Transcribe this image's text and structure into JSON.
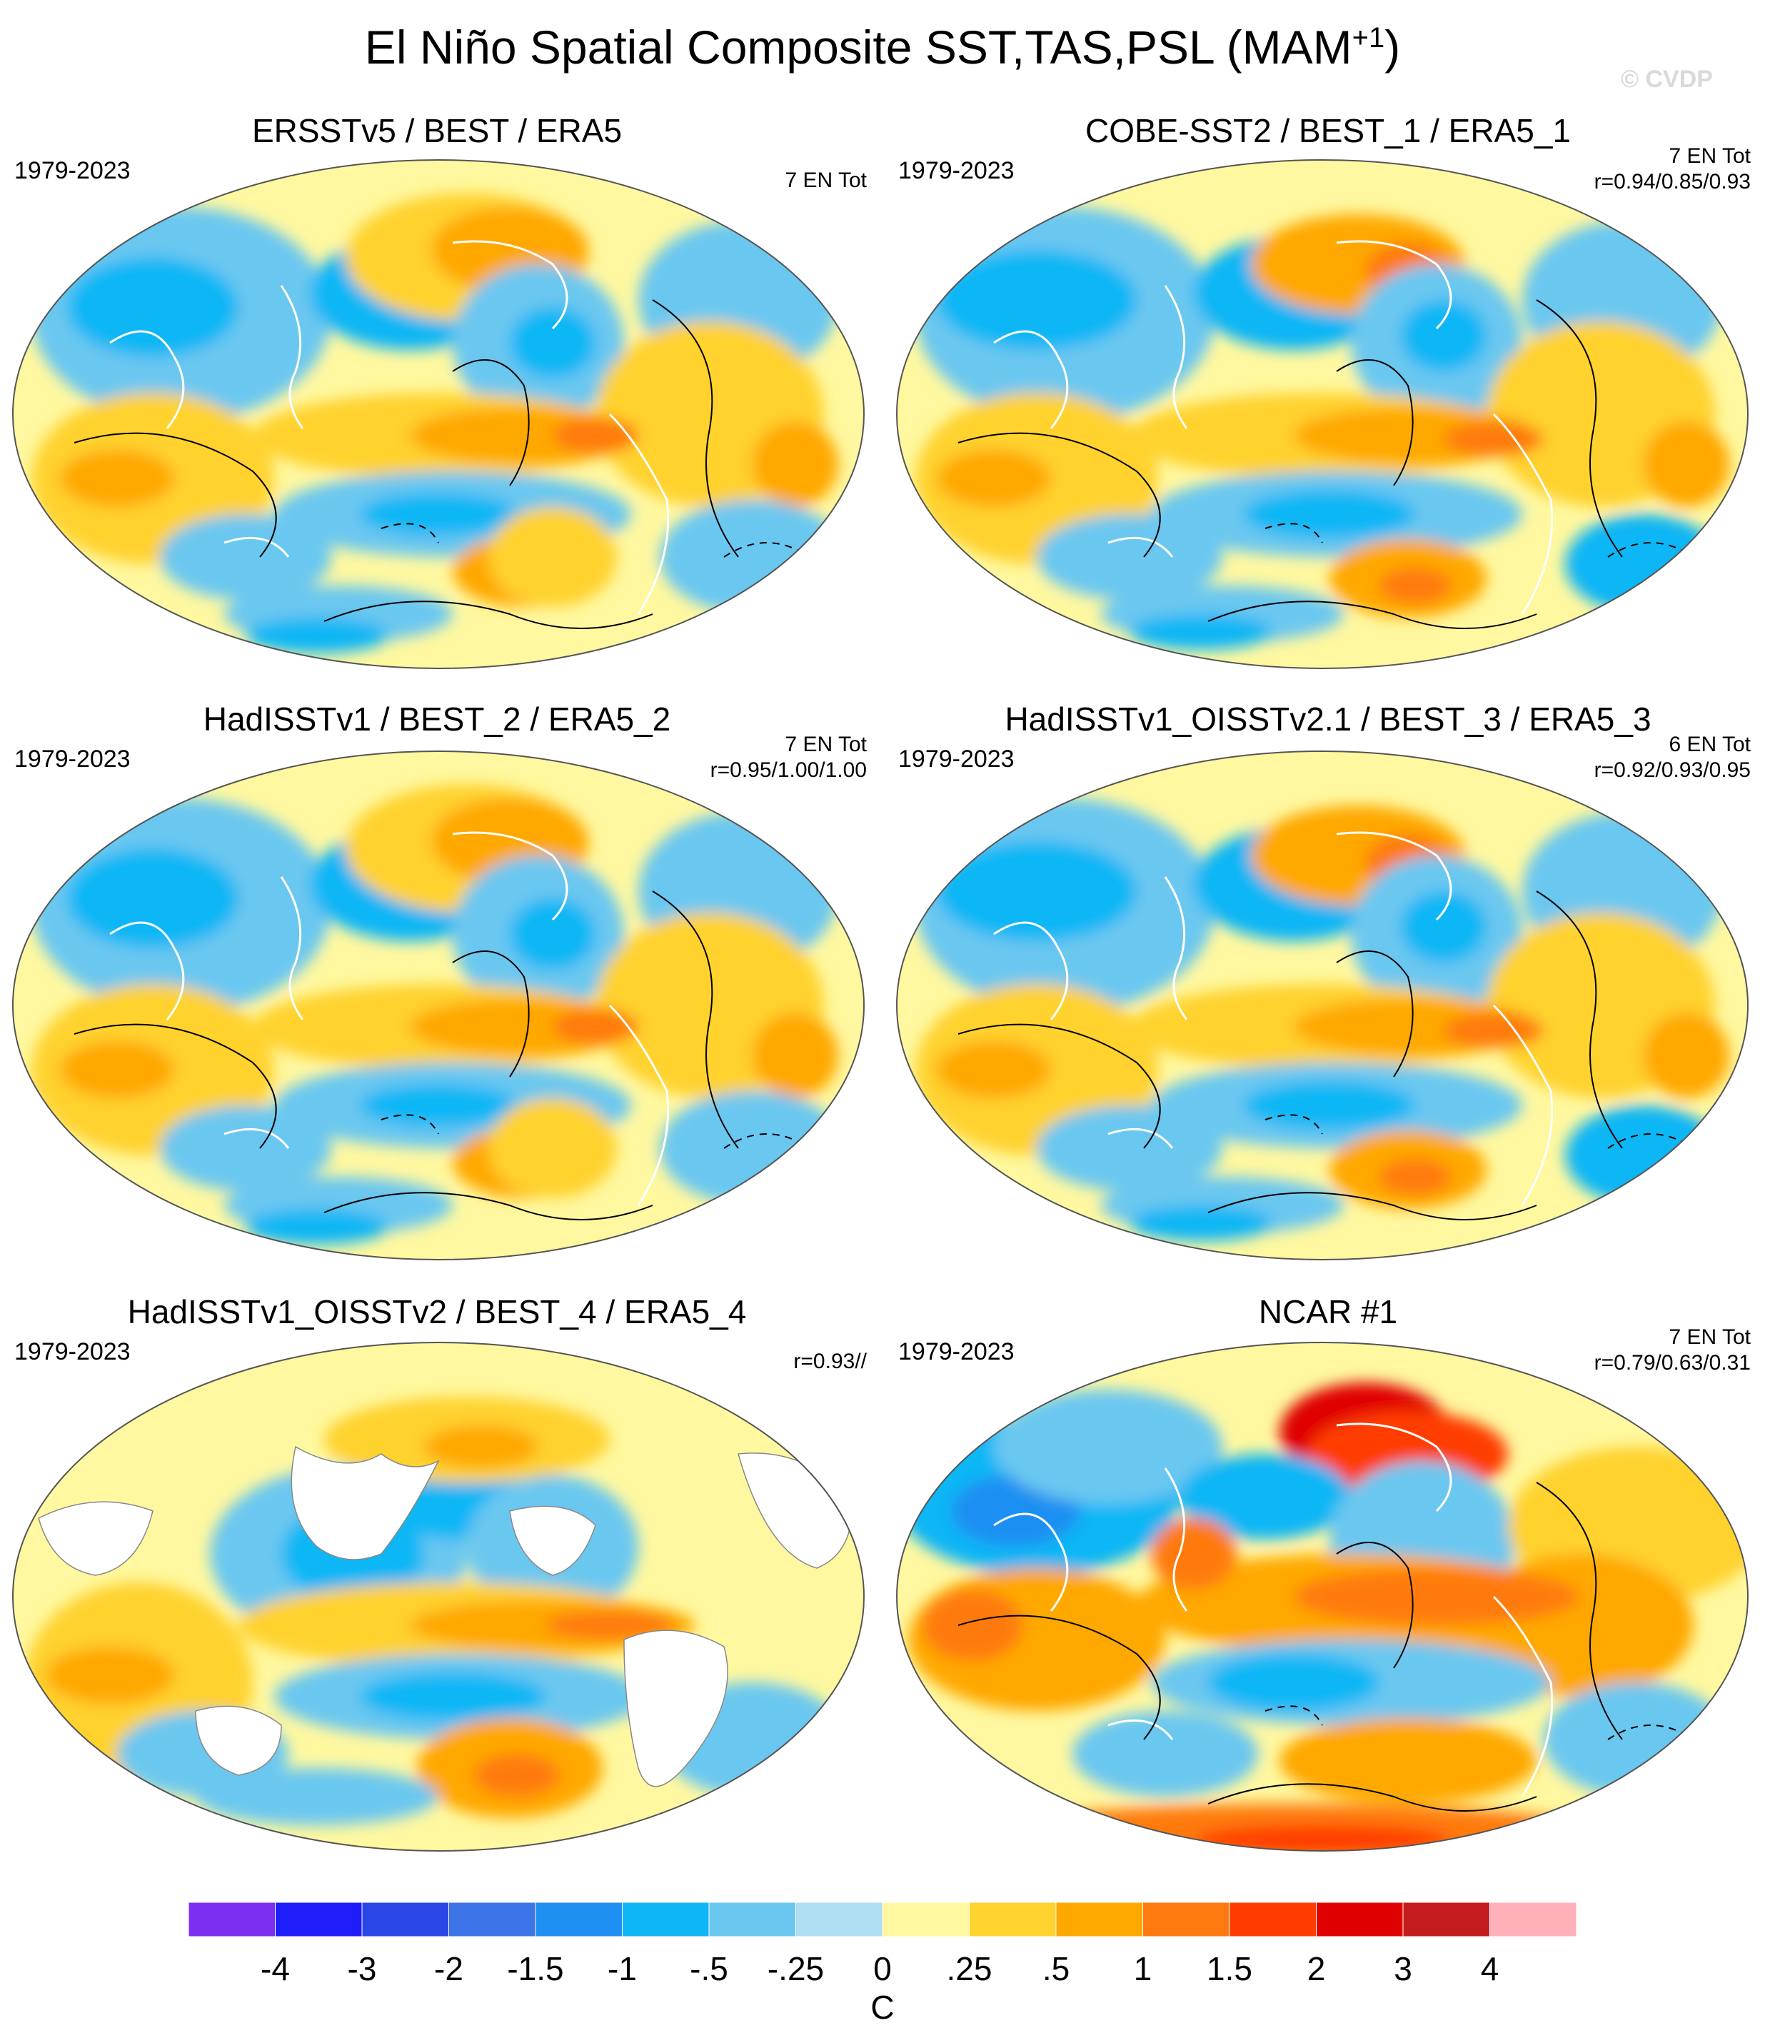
{
  "title": {
    "main": "El Niño Spatial Composite SST,TAS,PSL (MAM",
    "sup": "+1",
    "end": ")"
  },
  "watermark": "© CVDP",
  "panels": [
    {
      "title": "ERSSTv5 / BEST / ERA5",
      "period": "1979-2023",
      "count": "7 EN Tot",
      "r": "",
      "land": true,
      "psl": true,
      "pattern": "a"
    },
    {
      "title": "COBE-SST2 / BEST_1 / ERA5_1",
      "period": "1979-2023",
      "count": "7 EN Tot",
      "r": "r=0.94/0.85/0.93",
      "land": true,
      "psl": true,
      "pattern": "b"
    },
    {
      "title": "HadISSTv1 / BEST_2 / ERA5_2",
      "period": "1979-2023",
      "count": "7 EN Tot",
      "r": "r=0.95/1.00/1.00",
      "land": true,
      "psl": true,
      "pattern": "a"
    },
    {
      "title": "HadISSTv1_OISSTv2.1 / BEST_3 / ERA5_3",
      "period": "1979-2023",
      "count": "6 EN Tot",
      "r": "r=0.92/0.93/0.95",
      "land": true,
      "psl": true,
      "pattern": "b"
    },
    {
      "title": "HadISSTv1_OISSTv2 / BEST_4 / ERA5_4",
      "period": "1979-2023",
      "count": "",
      "r": "r=0.93//",
      "land": false,
      "psl": false,
      "pattern": "c"
    },
    {
      "title": "NCAR #1",
      "period": "1979-2023",
      "count": "7 EN Tot",
      "r": "r=0.79/0.63/0.31",
      "land": true,
      "psl": true,
      "pattern": "d"
    }
  ],
  "colorbar": {
    "units": "C",
    "labels": [
      "-4",
      "-3",
      "-2",
      "-1.5",
      "-1",
      "-.5",
      "-.25",
      "0",
      ".25",
      ".5",
      "1",
      "1.5",
      "2",
      "3",
      "4"
    ],
    "colors": [
      "#7b2ff0",
      "#1e1efa",
      "#2a46e6",
      "#3d74e8",
      "#1f8ff2",
      "#0fb6f5",
      "#6ac7f0",
      "#b0dff2",
      "#fff8a0",
      "#ffd22e",
      "#ffa800",
      "#ff7a10",
      "#ff3c00",
      "#e00000",
      "#c41c1c",
      "#ffb0b8"
    ]
  },
  "chart_data": {
    "type": "heatmap",
    "title": "El Niño Spatial Composite SST,TAS,PSL (MAM+1)",
    "projection": "Robinson-style global map, Pacific centered",
    "color_scale_levels_C": [
      -4,
      -3,
      -2,
      -1.5,
      -1,
      -0.5,
      -0.25,
      0,
      0.25,
      0.5,
      1,
      1.5,
      2,
      3,
      4
    ],
    "colorbar_units": "C",
    "panels": [
      {
        "name": "ERSSTv5 / BEST / ERA5",
        "years": "1979-2023",
        "events": "7 EN Tot",
        "pattern_correlation": null
      },
      {
        "name": "COBE-SST2 / BEST_1 / ERA5_1",
        "years": "1979-2023",
        "events": "7 EN Tot",
        "pattern_correlation": [
          0.94,
          0.85,
          0.93
        ]
      },
      {
        "name": "HadISSTv1 / BEST_2 / ERA5_2",
        "years": "1979-2023",
        "events": "7 EN Tot",
        "pattern_correlation": [
          0.95,
          1.0,
          1.0
        ]
      },
      {
        "name": "HadISSTv1_OISSTv2.1 / BEST_3 / ERA5_3",
        "years": "1979-2023",
        "events": "6 EN Tot",
        "pattern_correlation": [
          0.92,
          0.93,
          0.95
        ]
      },
      {
        "name": "HadISSTv1_OISSTv2 / BEST_4 / ERA5_4",
        "years": "1979-2023",
        "events": "",
        "pattern_correlation": [
          0.93
        ]
      },
      {
        "name": "NCAR #1",
        "years": "1979-2023",
        "events": "7 EN Tot",
        "pattern_correlation": [
          0.79,
          0.63,
          0.31
        ]
      }
    ]
  }
}
